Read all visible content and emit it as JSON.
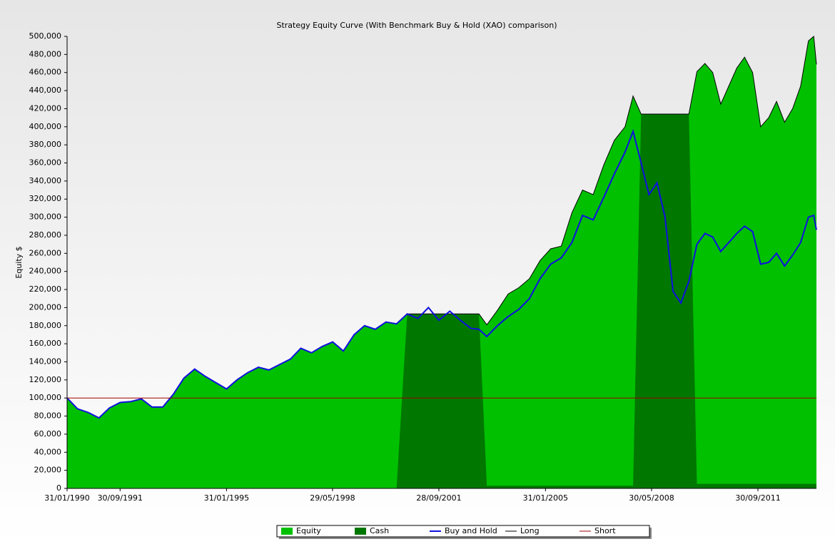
{
  "chart_data": {
    "type": "area",
    "title": "Strategy Equity Curve (With Benchmark Buy & Hold (XAO) comparison)",
    "y_label": "Equity $",
    "x": [
      "31/01/1990",
      "31/05/1990",
      "30/09/1990",
      "31/01/1991",
      "31/05/1991",
      "30/09/1991",
      "31/01/1992",
      "31/05/1992",
      "30/09/1992",
      "31/01/1993",
      "31/05/1993",
      "30/09/1993",
      "31/01/1994",
      "31/05/1994",
      "30/09/1994",
      "31/01/1995",
      "31/05/1995",
      "30/09/1995",
      "31/01/1996",
      "31/05/1996",
      "30/09/1996",
      "31/01/1997",
      "31/05/1997",
      "30/09/1997",
      "31/01/1998",
      "31/05/1998",
      "30/09/1998",
      "31/01/1999",
      "31/05/1999",
      "30/09/1999",
      "31/01/2000",
      "31/05/2000",
      "30/09/2000",
      "31/01/2001",
      "31/05/2001",
      "28/09/2001",
      "31/01/2002",
      "31/05/2002",
      "30/09/2002",
      "31/12/2002",
      "31/03/2003",
      "31/07/2003",
      "30/11/2003",
      "31/03/2004",
      "31/07/2004",
      "30/11/2004",
      "31/03/2005",
      "31/07/2005",
      "30/11/2005",
      "31/03/2006",
      "31/07/2006",
      "30/11/2006",
      "31/03/2007",
      "31/07/2007",
      "31/10/2007",
      "31/01/2008",
      "30/04/2008",
      "31/07/2008",
      "31/10/2008",
      "31/01/2009",
      "30/04/2009",
      "31/07/2009",
      "31/10/2009",
      "31/01/2010",
      "30/04/2010",
      "31/07/2010",
      "31/10/2010",
      "31/01/2011",
      "30/04/2011",
      "31/07/2011",
      "31/10/2011",
      "31/01/2012",
      "30/04/2012",
      "31/07/2012",
      "31/10/2012",
      "31/01/2013",
      "30/04/2013",
      "30/06/2013",
      "31/07/2013"
    ],
    "series": [
      {
        "name": "Equity",
        "kind": "area",
        "color": "#00c000",
        "values": [
          100000,
          88000,
          84000,
          78000,
          89000,
          95000,
          96000,
          99000,
          90000,
          90000,
          104000,
          122000,
          132000,
          124000,
          117000,
          110000,
          120000,
          128000,
          134000,
          131000,
          137000,
          143000,
          155000,
          150000,
          157000,
          162000,
          152000,
          170000,
          180000,
          176000,
          184000,
          182000,
          193000,
          193000,
          193000,
          193000,
          193000,
          193000,
          193000,
          193000,
          181000,
          197000,
          215000,
          222000,
          232000,
          252000,
          265000,
          268000,
          305000,
          330000,
          325000,
          358000,
          385000,
          400000,
          434000,
          414000,
          414000,
          414000,
          414000,
          414000,
          414000,
          414000,
          461000,
          470000,
          460000,
          425000,
          445000,
          465000,
          477000,
          460000,
          400000,
          410000,
          428000,
          405000,
          420000,
          445000,
          495000,
          500000,
          469000
        ]
      },
      {
        "name": "Cash",
        "kind": "area",
        "color": "#007800",
        "values": [
          0,
          0,
          0,
          0,
          0,
          0,
          0,
          0,
          0,
          0,
          0,
          0,
          0,
          0,
          0,
          0,
          0,
          0,
          0,
          0,
          0,
          0,
          0,
          0,
          0,
          0,
          0,
          0,
          0,
          0,
          0,
          0,
          193000,
          193000,
          193000,
          193000,
          193000,
          193000,
          193000,
          193000,
          3000,
          3000,
          3000,
          3000,
          3000,
          3000,
          3000,
          3000,
          3000,
          3000,
          3000,
          3000,
          3000,
          3000,
          3000,
          414000,
          414000,
          414000,
          414000,
          414000,
          414000,
          414000,
          5000,
          5000,
          5000,
          5000,
          5000,
          5000,
          5000,
          5000,
          5000,
          5000,
          5000,
          5000,
          5000,
          5000,
          5000,
          5000,
          5000
        ]
      },
      {
        "name": "Buy and Hold",
        "kind": "line",
        "color": "#1010e0",
        "values": [
          100000,
          88000,
          84000,
          78000,
          89000,
          95000,
          96000,
          99000,
          90000,
          90000,
          104000,
          122000,
          132000,
          124000,
          117000,
          110000,
          120000,
          128000,
          134000,
          131000,
          137000,
          143000,
          155000,
          150000,
          157000,
          162000,
          152000,
          170000,
          180000,
          176000,
          184000,
          182000,
          193000,
          188000,
          200000,
          186000,
          196000,
          186000,
          177000,
          176000,
          168000,
          180000,
          190000,
          198000,
          210000,
          232000,
          248000,
          255000,
          272000,
          302000,
          297000,
          322000,
          348000,
          372000,
          395000,
          360000,
          325000,
          338000,
          300000,
          218000,
          205000,
          229000,
          270000,
          282000,
          278000,
          262000,
          272000,
          282000,
          290000,
          284000,
          248000,
          250000,
          260000,
          246000,
          258000,
          272000,
          300000,
          302000,
          286000
        ]
      },
      {
        "name": "Long",
        "kind": "outline",
        "color": "#000000"
      },
      {
        "name": "Short",
        "kind": "line",
        "color": "#a00000",
        "x": [
          "31/01/1990",
          "31/07/2013"
        ],
        "values": [
          100000,
          100000
        ]
      }
    ],
    "xlim": [
      "31/01/1990",
      "31/07/2013"
    ],
    "xticks": [
      "31/01/1990",
      "30/09/1991",
      "31/01/1995",
      "29/05/1998",
      "28/09/2001",
      "31/01/2005",
      "30/05/2008",
      "30/09/2011"
    ],
    "ylim": [
      0,
      500000
    ],
    "yticks": [
      0,
      {
        "value": 20000,
        "label": "20,000"
      },
      {
        "value": 40000,
        "label": "40,000"
      },
      {
        "value": 60000,
        "label": "60,000"
      },
      {
        "value": 80000,
        "label": "80,000"
      },
      {
        "value": 100000,
        "label": "100,000"
      },
      {
        "value": 120000,
        "label": "120,000"
      },
      {
        "value": 140000,
        "label": "140,000"
      },
      {
        "value": 160000,
        "label": "160,000"
      },
      {
        "value": 180000,
        "label": "180,000"
      },
      {
        "value": 200000,
        "label": "200,000"
      },
      {
        "value": 220000,
        "label": "220,000"
      },
      {
        "value": 240000,
        "label": "240,000"
      },
      {
        "value": 260000,
        "label": "260,000"
      },
      {
        "value": 280000,
        "label": "280,000"
      },
      {
        "value": 300000,
        "label": "300,000"
      },
      {
        "value": 320000,
        "label": "320,000"
      },
      {
        "value": 340000,
        "label": "340,000"
      },
      {
        "value": 360000,
        "label": "360,000"
      },
      {
        "value": 380000,
        "label": "380,000"
      },
      {
        "value": 400000,
        "label": "400,000"
      },
      {
        "value": 420000,
        "label": "420,000"
      },
      {
        "value": 440000,
        "label": "440,000"
      },
      {
        "value": 460000,
        "label": "460,000"
      },
      {
        "value": 480000,
        "label": "480,000"
      },
      {
        "value": 500000,
        "label": "500,000"
      }
    ],
    "grid": false,
    "legend": "bottom"
  }
}
